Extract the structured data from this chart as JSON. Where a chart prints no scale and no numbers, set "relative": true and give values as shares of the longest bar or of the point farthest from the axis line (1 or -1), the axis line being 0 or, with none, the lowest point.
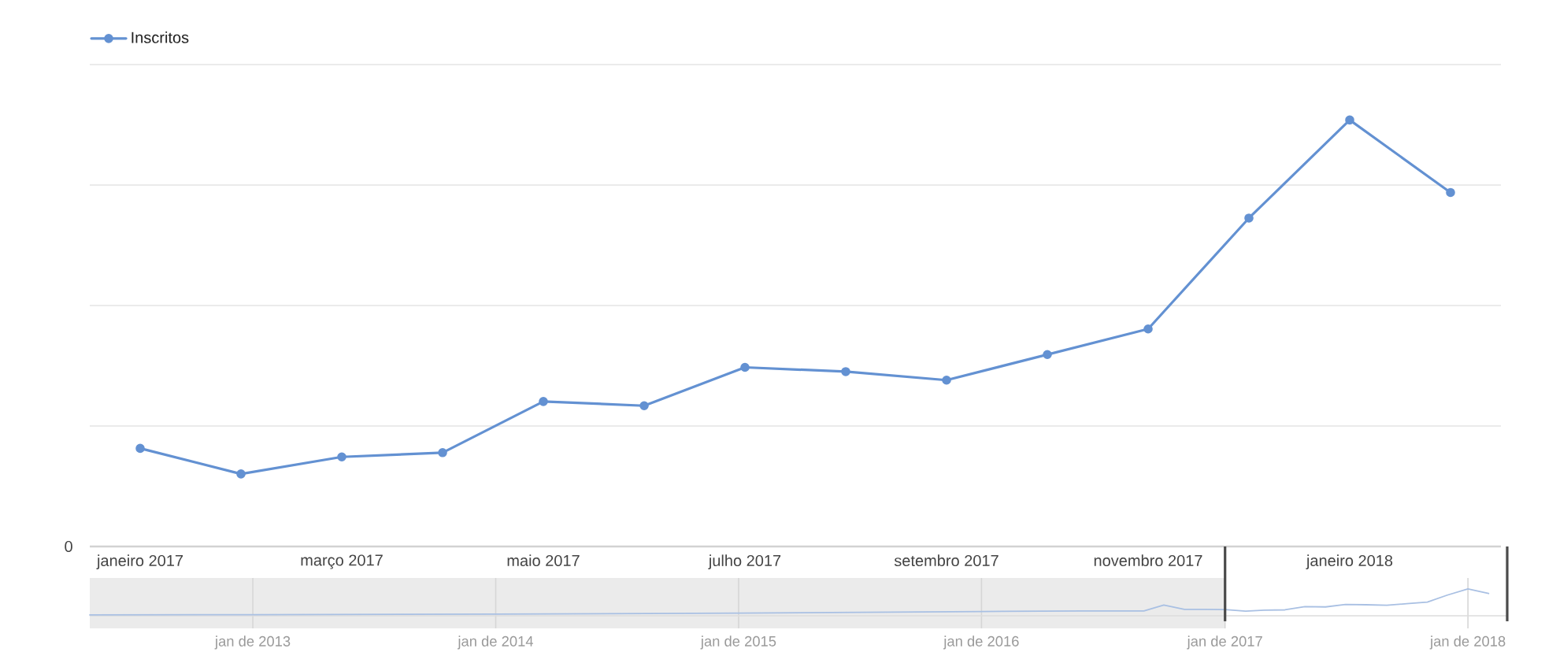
{
  "chart_data": [
    {
      "type": "line",
      "categories": [
        "janeiro 2017",
        null,
        "março 2017",
        null,
        "maio 2017",
        null,
        "julho 2017",
        null,
        "setembro 2017",
        null,
        "novembro 2017",
        null,
        "janeiro 2018",
        null
      ],
      "series": [
        {
          "name": "Inscritos",
          "color": "#6391d2",
          "values": [
            0.23,
            0.17,
            0.21,
            0.22,
            0.34,
            0.33,
            0.42,
            0.41,
            0.39,
            0.45,
            0.51,
            0.77,
            1,
            0.83
          ]
        }
      ],
      "relative": true,
      "grid": "y",
      "legend": "top left",
      "marker": "circle",
      "line_style": "solid",
      "annotations": [
        "0"
      ]
    },
    {
      "type": "line",
      "x": [
        "2012-05",
        "2013-01",
        "2014-01",
        "2015-01",
        "2016-01",
        "2016-06",
        "2016-09",
        "2016-10",
        "2016-11",
        "2016-12",
        "2017-01",
        "2017-02",
        "2017-03",
        "2017-04",
        "2017-05",
        "2017-06",
        "2017-07",
        "2017-08",
        "2017-09",
        "2017-10",
        "2017-11",
        "2017-12",
        "2018-01",
        "2018-02"
      ],
      "series": [
        {
          "color": "#a9c0e3",
          "values": [
            0.03,
            0.04,
            0.06,
            0.1,
            0.16,
            0.18,
            0.18,
            0.4,
            0.24,
            0.24,
            0.23,
            0.17,
            0.21,
            0.22,
            0.34,
            0.33,
            0.42,
            0.41,
            0.39,
            0.45,
            0.51,
            0.77,
            1,
            0.83
          ]
        }
      ],
      "relative": true,
      "xlim": [
        "2012-05",
        "2018-03"
      ],
      "xticks": [
        {
          "value": "2013-01",
          "label": "jan de 2013"
        },
        {
          "value": "2014-01",
          "label": "jan de 2014"
        },
        {
          "value": "2015-01",
          "label": "jan de 2015"
        },
        {
          "value": "2016-01",
          "label": "jan de 2016"
        },
        {
          "value": "2017-01",
          "label": "jan de 2017"
        },
        {
          "value": "2018-01",
          "label": "jan de 2018"
        }
      ],
      "grid": "x",
      "bands": [
        {
          "axis": "x",
          "from": "2012-05",
          "to": "2017-01",
          "color": "#ebebeb"
        }
      ],
      "ref_lines": [
        {
          "axis": "x",
          "value": "2017-01",
          "color": "#4a4a4a"
        },
        {
          "axis": "x",
          "value": "2018-03",
          "color": "#4a4a4a"
        }
      ]
    }
  ]
}
